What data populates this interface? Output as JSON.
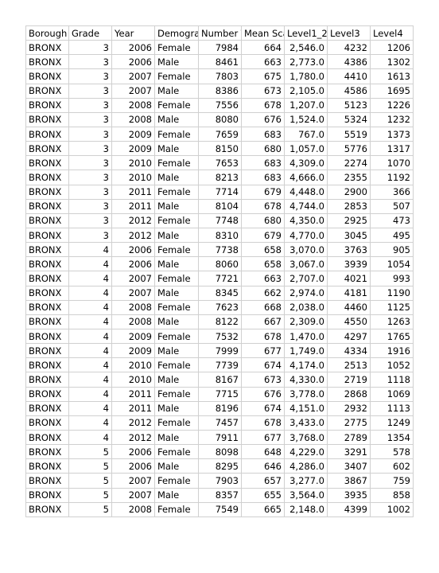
{
  "headers": [
    "Borough",
    "Grade",
    "Year",
    "Demographic",
    "Number Tested",
    "Mean Scale Score",
    "Level1_2",
    "Level3",
    "Level4"
  ],
  "rows": [
    [
      "BRONX",
      "3",
      "2006",
      "Female",
      "7984",
      "664",
      "2,546.0",
      "4232",
      "1206"
    ],
    [
      "BRONX",
      "3",
      "2006",
      "Male",
      "8461",
      "663",
      "2,773.0",
      "4386",
      "1302"
    ],
    [
      "BRONX",
      "3",
      "2007",
      "Female",
      "7803",
      "675",
      "1,780.0",
      "4410",
      "1613"
    ],
    [
      "BRONX",
      "3",
      "2007",
      "Male",
      "8386",
      "673",
      "2,105.0",
      "4586",
      "1695"
    ],
    [
      "BRONX",
      "3",
      "2008",
      "Female",
      "7556",
      "678",
      "1,207.0",
      "5123",
      "1226"
    ],
    [
      "BRONX",
      "3",
      "2008",
      "Male",
      "8080",
      "676",
      "1,524.0",
      "5324",
      "1232"
    ],
    [
      "BRONX",
      "3",
      "2009",
      "Female",
      "7659",
      "683",
      "767.0",
      "5519",
      "1373"
    ],
    [
      "BRONX",
      "3",
      "2009",
      "Male",
      "8150",
      "680",
      "1,057.0",
      "5776",
      "1317"
    ],
    [
      "BRONX",
      "3",
      "2010",
      "Female",
      "7653",
      "683",
      "4,309.0",
      "2274",
      "1070"
    ],
    [
      "BRONX",
      "3",
      "2010",
      "Male",
      "8213",
      "683",
      "4,666.0",
      "2355",
      "1192"
    ],
    [
      "BRONX",
      "3",
      "2011",
      "Female",
      "7714",
      "679",
      "4,448.0",
      "2900",
      "366"
    ],
    [
      "BRONX",
      "3",
      "2011",
      "Male",
      "8104",
      "678",
      "4,744.0",
      "2853",
      "507"
    ],
    [
      "BRONX",
      "3",
      "2012",
      "Female",
      "7748",
      "680",
      "4,350.0",
      "2925",
      "473"
    ],
    [
      "BRONX",
      "3",
      "2012",
      "Male",
      "8310",
      "679",
      "4,770.0",
      "3045",
      "495"
    ],
    [
      "BRONX",
      "4",
      "2006",
      "Female",
      "7738",
      "658",
      "3,070.0",
      "3763",
      "905"
    ],
    [
      "BRONX",
      "4",
      "2006",
      "Male",
      "8060",
      "658",
      "3,067.0",
      "3939",
      "1054"
    ],
    [
      "BRONX",
      "4",
      "2007",
      "Female",
      "7721",
      "663",
      "2,707.0",
      "4021",
      "993"
    ],
    [
      "BRONX",
      "4",
      "2007",
      "Male",
      "8345",
      "662",
      "2,974.0",
      "4181",
      "1190"
    ],
    [
      "BRONX",
      "4",
      "2008",
      "Female",
      "7623",
      "668",
      "2,038.0",
      "4460",
      "1125"
    ],
    [
      "BRONX",
      "4",
      "2008",
      "Male",
      "8122",
      "667",
      "2,309.0",
      "4550",
      "1263"
    ],
    [
      "BRONX",
      "4",
      "2009",
      "Female",
      "7532",
      "678",
      "1,470.0",
      "4297",
      "1765"
    ],
    [
      "BRONX",
      "4",
      "2009",
      "Male",
      "7999",
      "677",
      "1,749.0",
      "4334",
      "1916"
    ],
    [
      "BRONX",
      "4",
      "2010",
      "Female",
      "7739",
      "674",
      "4,174.0",
      "2513",
      "1052"
    ],
    [
      "BRONX",
      "4",
      "2010",
      "Male",
      "8167",
      "673",
      "4,330.0",
      "2719",
      "1118"
    ],
    [
      "BRONX",
      "4",
      "2011",
      "Female",
      "7715",
      "676",
      "3,778.0",
      "2868",
      "1069"
    ],
    [
      "BRONX",
      "4",
      "2011",
      "Male",
      "8196",
      "674",
      "4,151.0",
      "2932",
      "1113"
    ],
    [
      "BRONX",
      "4",
      "2012",
      "Female",
      "7457",
      "678",
      "3,433.0",
      "2775",
      "1249"
    ],
    [
      "BRONX",
      "4",
      "2012",
      "Male",
      "7911",
      "677",
      "3,768.0",
      "2789",
      "1354"
    ],
    [
      "BRONX",
      "5",
      "2006",
      "Female",
      "8098",
      "648",
      "4,229.0",
      "3291",
      "578"
    ],
    [
      "BRONX",
      "5",
      "2006",
      "Male",
      "8295",
      "646",
      "4,286.0",
      "3407",
      "602"
    ],
    [
      "BRONX",
      "5",
      "2007",
      "Female",
      "7903",
      "657",
      "3,277.0",
      "3867",
      "759"
    ],
    [
      "BRONX",
      "5",
      "2007",
      "Male",
      "8357",
      "655",
      "3,564.0",
      "3935",
      "858"
    ],
    [
      "BRONX",
      "5",
      "2008",
      "Female",
      "7549",
      "665",
      "2,148.0",
      "4399",
      "1002"
    ]
  ]
}
